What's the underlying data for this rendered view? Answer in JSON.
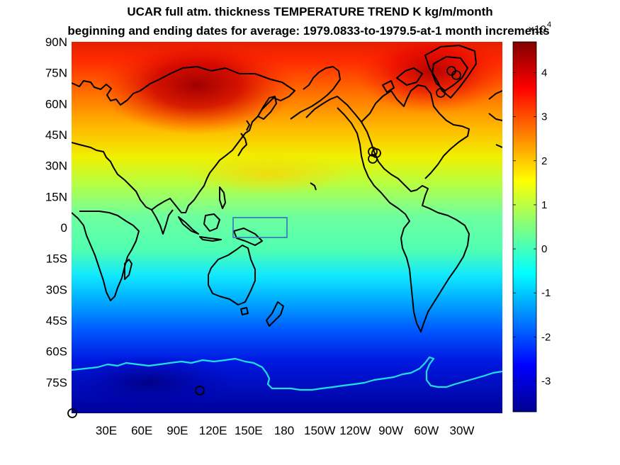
{
  "title_line1": "UCAR full atm. thickness  TEMPERATURE TREND K kg/m/month",
  "title_line2": "beginning and ending dates for average:  1979.0833-to-1979.5-at-1 month increments",
  "lat_labels": [
    "90N",
    "75N",
    "60N",
    "45N",
    "30N",
    "15N",
    "0",
    "15S",
    "30S",
    "45S",
    "60S",
    "75S"
  ],
  "lon_labels": [
    "30E",
    "60E",
    "90E",
    "120E",
    "150E",
    "180",
    "150W",
    "120W",
    "90W",
    "60W",
    "30W"
  ],
  "colorbar": {
    "exponent_base": "×10",
    "exponent": "4",
    "ticks": [
      "4",
      "3",
      "2",
      "1",
      "0",
      "-1",
      "-2",
      "-3"
    ],
    "tick_values": [
      4,
      3,
      2,
      1,
      0,
      -1,
      -2,
      -3
    ],
    "range": [
      -3.7,
      4.7
    ],
    "colormap": "jet"
  },
  "chart_data": {
    "type": "heatmap",
    "title": "UCAR full atm. thickness  TEMPERATURE TREND K kg/m/month",
    "subtitle": "beginning and ending dates for average:  1979.0833-to-1979.5-at-1 month increments",
    "projection": "equirectangular, centered on Pacific",
    "value_scale": 10000,
    "zonal_profile": {
      "lat": [
        90,
        75,
        60,
        45,
        30,
        15,
        0,
        -15,
        -30,
        -45,
        -60,
        -75,
        -90
      ],
      "value": [
        3.6,
        3.4,
        2.9,
        2.3,
        1.6,
        0.9,
        0.5,
        0.2,
        -0.6,
        -1.5,
        -2.3,
        -2.9,
        -3.2
      ]
    },
    "extremes": {
      "max": {
        "lat": 67,
        "lon": 95,
        "value": 4.5
      },
      "max2": {
        "lat": 70,
        "lon": -40,
        "value": 4.2
      },
      "min": {
        "lat": -80,
        "lon": 60,
        "value": -3.5
      }
    },
    "overlays": [
      "coastlines (black)",
      "Antarctic coastline (cyan)",
      "box 140E-170W, 5N-5S (blue)",
      "circle markers"
    ]
  },
  "colors": {
    "coast": "#000000",
    "antarctic": "#1ee0e8",
    "box": "#3a73b5"
  }
}
